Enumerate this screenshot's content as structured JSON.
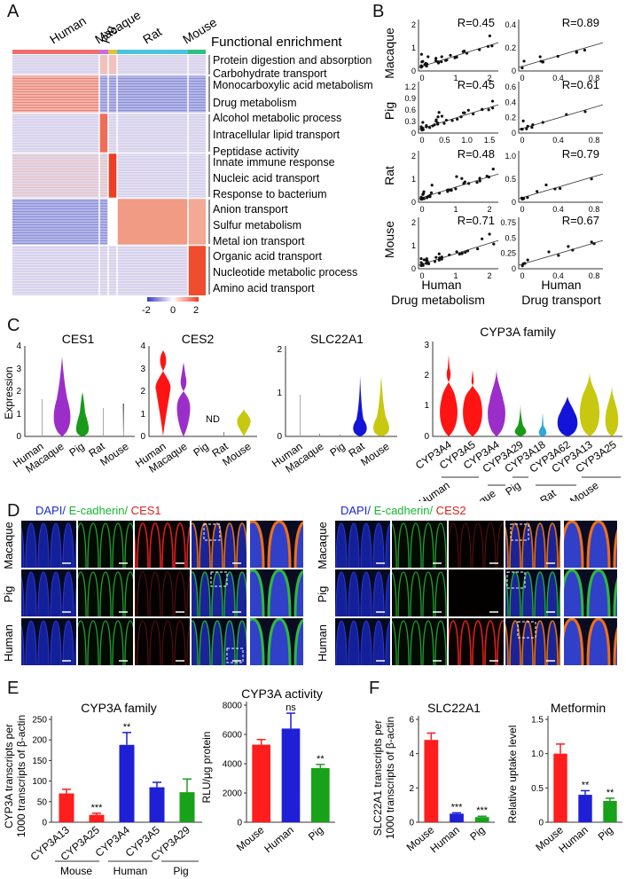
{
  "panelA": {
    "letter": "A",
    "species": [
      "Human",
      "Macaque",
      "Pig",
      "Rat",
      "Mouse"
    ],
    "species_colors": [
      "#f36d6d",
      "#c56de0",
      "#e2c23a",
      "#4cc3dd",
      "#2fbf7f"
    ],
    "enrichment_title": "Functional enrichment",
    "enrichment_terms": [
      [
        "Protein digestion and absorption",
        "Carbohydrate transport"
      ],
      [
        "Monocarboxylic acid metabolism",
        "Drug metabolism"
      ],
      [
        "Alcohol metabolic process",
        "Intracellular lipid transport",
        "Peptidase activity"
      ],
      [
        "Innate immune response",
        "Nucleic acid transport",
        "Response to bacterium"
      ],
      [
        "Anion transport",
        "Sulfur metabolism",
        "Metal ion transport"
      ],
      [
        "Organic acid transport",
        "Nucleotide metabolic process",
        "Amino acid transport"
      ]
    ],
    "colorbar": {
      "min": "-2",
      "mid": "0",
      "max": "2",
      "low_color": "#3b3bc8",
      "high_color": "#ee3b1f"
    }
  },
  "panelB": {
    "letter": "B",
    "rows": [
      "Macaque",
      "Pig",
      "Rat",
      "Mouse"
    ],
    "x_label_species": "Human",
    "columns": [
      "Drug metabolism",
      "Drug transport"
    ],
    "r_values": [
      [
        "R=0.45",
        "R=0.89"
      ],
      [
        "R=0.45",
        "R=0.61"
      ],
      [
        "R=0.48",
        "R=0.79"
      ],
      [
        "R=0.71",
        "R=0.67"
      ]
    ],
    "y_ticks_left": [
      [
        "0",
        "1",
        "2"
      ],
      [
        "0",
        "0.3",
        "0.6",
        "0.9",
        "1.2"
      ],
      [
        "0",
        "1",
        "2"
      ],
      [
        "0",
        "1",
        "2"
      ]
    ],
    "y_ticks_right": [
      [
        "0",
        "0.2",
        "0.4"
      ],
      [
        "0",
        "0.2",
        "0.4",
        "0.6"
      ],
      [
        "0",
        "0.5",
        "1.0"
      ],
      [
        "0",
        "0.25",
        "0.5",
        "0.75"
      ]
    ],
    "x_ticks_left": [
      "0",
      "1",
      "2"
    ],
    "x_ticks_left_pig": [
      "0",
      "0.5",
      "1.0",
      "1.5"
    ],
    "x_ticks_right": [
      "0",
      "0.4",
      "0.8"
    ]
  },
  "panelC": {
    "letter": "C",
    "y_label": "Expression",
    "gene_plots": [
      {
        "title": "CES1",
        "labels": [
          "Human",
          "Macaque",
          "Pig",
          "Rat",
          "Mouse"
        ],
        "y_ticks": [
          "0",
          "1",
          "2",
          "3",
          "4"
        ]
      },
      {
        "title": "CES2",
        "labels": [
          "Human",
          "Macaque",
          "Pig",
          "Rat",
          "Mouse"
        ],
        "y_ticks": [
          "0",
          "1",
          "2",
          "3",
          "4"
        ],
        "note": "ND"
      },
      {
        "title": "SLC22A1",
        "labels": [
          "Human",
          "Macaque",
          "Pig",
          "Rat",
          "Mouse"
        ],
        "y_ticks": [
          "0",
          "1",
          "2"
        ]
      }
    ],
    "cyp3a": {
      "title": "CYP3A family",
      "genes": [
        "CYP3A4",
        "CYP3A5",
        "CYP3A4",
        "CYP3A29",
        "CYP3A18",
        "CYP3A62",
        "CYP3A13",
        "CYP3A25"
      ],
      "groups": [
        "Human",
        "Macaque",
        "Pig",
        "Rat",
        "Mouse"
      ],
      "y_ticks": [
        "0",
        "1",
        "2",
        "3"
      ]
    }
  },
  "panelD": {
    "letter": "D",
    "left_title": {
      "dapi": "DAPI/",
      "ecad": " E-cadherin/",
      "marker": " CES1"
    },
    "right_title": {
      "dapi": "DAPI/",
      "ecad": " E-cadherin/",
      "marker": " CES2"
    },
    "rows": [
      "Macaque",
      "Pig",
      "Human"
    ],
    "dapi_color": "#1a2ad8",
    "ecad_color": "#17b530",
    "marker_color": "#e0201d"
  },
  "panelE": {
    "letter": "E",
    "cyp_chart": {
      "title": "CYP3A family",
      "ylabel_line1": "CYP3A transcripts per",
      "ylabel_line2": "1000 transcripts of β-actin",
      "y_ticks": [
        "0",
        "50",
        "100",
        "150",
        "200",
        "250"
      ],
      "groups": [
        "Mouse",
        "Human",
        "Pig"
      ]
    },
    "activity_chart": {
      "title": "CYP3A activity",
      "ylabel": "RLU/μg protein",
      "y_ticks": [
        "0",
        "2000",
        "4000",
        "6000",
        "8000"
      ]
    }
  },
  "panelF": {
    "letter": "F",
    "slc_chart": {
      "title": "SLC22A1",
      "ylabel_line1": "SLC22A1 transcripts per",
      "ylabel_line2": "1000 transcripts of β-actin",
      "y_ticks": [
        "0",
        "2",
        "4",
        "6"
      ]
    },
    "metformin_chart": {
      "title": "Metformin",
      "ylabel": "Relative uptake level",
      "y_ticks": [
        "0",
        "0.5",
        "1.0",
        "1.5"
      ]
    }
  },
  "chart_data": [
    {
      "type": "bar",
      "title": "CYP3A family",
      "categories": [
        "CYP3A13",
        "CYP3A25",
        "CYP3A4",
        "CYP3A5",
        "CYP3A29"
      ],
      "values": [
        70,
        18,
        188,
        85,
        73
      ],
      "errors": [
        10,
        4,
        30,
        12,
        32
      ],
      "colors": [
        "#ff1d1d",
        "#ff1d1d",
        "#1f1fd6",
        "#1f1fd6",
        "#1aa11a"
      ],
      "significance": [
        "",
        "***",
        "**",
        "",
        ""
      ],
      "ylim": [
        0,
        250
      ]
    },
    {
      "type": "bar",
      "title": "CYP3A activity",
      "categories": [
        "Mouse",
        "Human",
        "Pig"
      ],
      "values": [
        5300,
        6400,
        3700
      ],
      "errors": [
        350,
        1050,
        250
      ],
      "colors": [
        "#ff1d1d",
        "#1f1fd6",
        "#1aa11a"
      ],
      "significance": [
        "",
        "ns",
        "**"
      ],
      "ylim": [
        0,
        8000
      ]
    },
    {
      "type": "bar",
      "title": "SLC22A1",
      "categories": [
        "Mouse",
        "Human",
        "Pig"
      ],
      "values": [
        4.8,
        0.5,
        0.3
      ],
      "errors": [
        0.4,
        0.05,
        0.05
      ],
      "colors": [
        "#ff1d1d",
        "#1f1fd6",
        "#1aa11a"
      ],
      "significance": [
        "",
        "***",
        "***"
      ],
      "ylim": [
        0,
        6
      ]
    },
    {
      "type": "bar",
      "title": "Metformin",
      "categories": [
        "Mouse",
        "Human",
        "Pig"
      ],
      "values": [
        1.0,
        0.4,
        0.31
      ],
      "errors": [
        0.14,
        0.06,
        0.04
      ],
      "colors": [
        "#ff1d1d",
        "#1f1fd6",
        "#1aa11a"
      ],
      "significance": [
        "",
        "**",
        "**"
      ],
      "ylim": [
        0,
        1.5
      ]
    }
  ]
}
